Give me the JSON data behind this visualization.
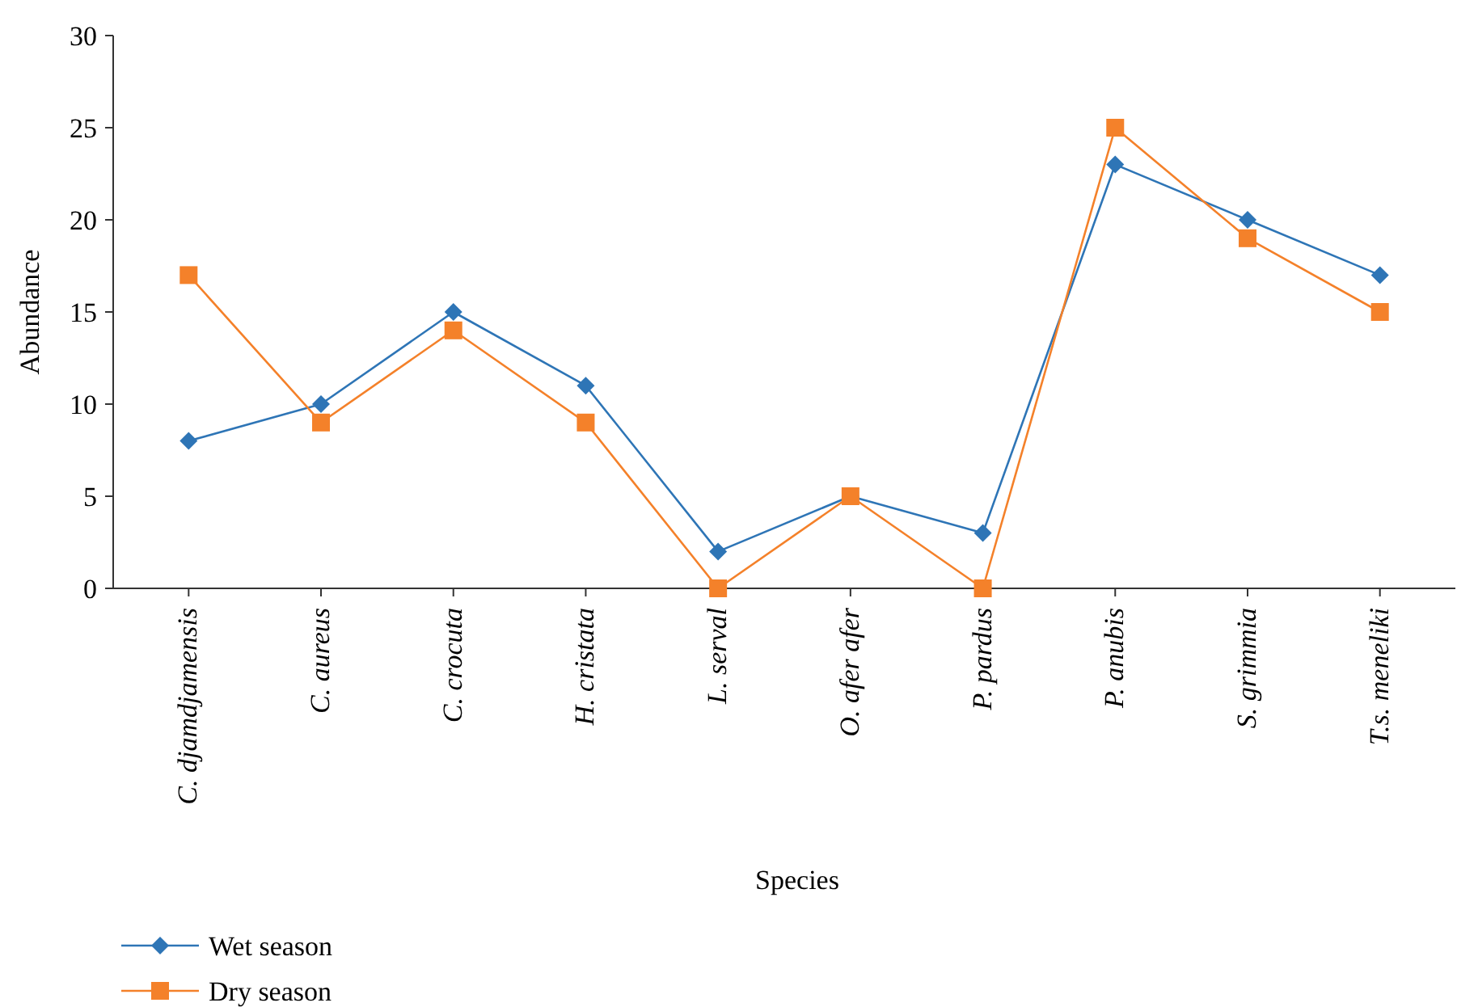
{
  "chart_data": {
    "type": "line",
    "xlabel": "Species",
    "ylabel": "Abundance",
    "categories": [
      "C. djamdjamensis",
      "C. aureus",
      "C. crocuta",
      "H. cristata",
      "L. serval",
      "O. afer afer",
      "P. pardus",
      "P. anubis",
      "S. grimmia",
      "T.s. meneliki"
    ],
    "series": [
      {
        "name": "Wet season",
        "color": "#2e75b6",
        "marker": "diamond",
        "values": [
          8,
          10,
          15,
          11,
          2,
          5,
          3,
          23,
          20,
          17
        ]
      },
      {
        "name": "Dry season",
        "color": "#f4812a",
        "marker": "square",
        "values": [
          17,
          9,
          14,
          9,
          0,
          5,
          0,
          25,
          19,
          15
        ]
      }
    ],
    "ylim": [
      0,
      30
    ],
    "yticks": [
      0,
      5,
      10,
      15,
      20,
      25,
      30
    ],
    "grid": false,
    "legend": "bottom left",
    "line_style": "solid"
  }
}
